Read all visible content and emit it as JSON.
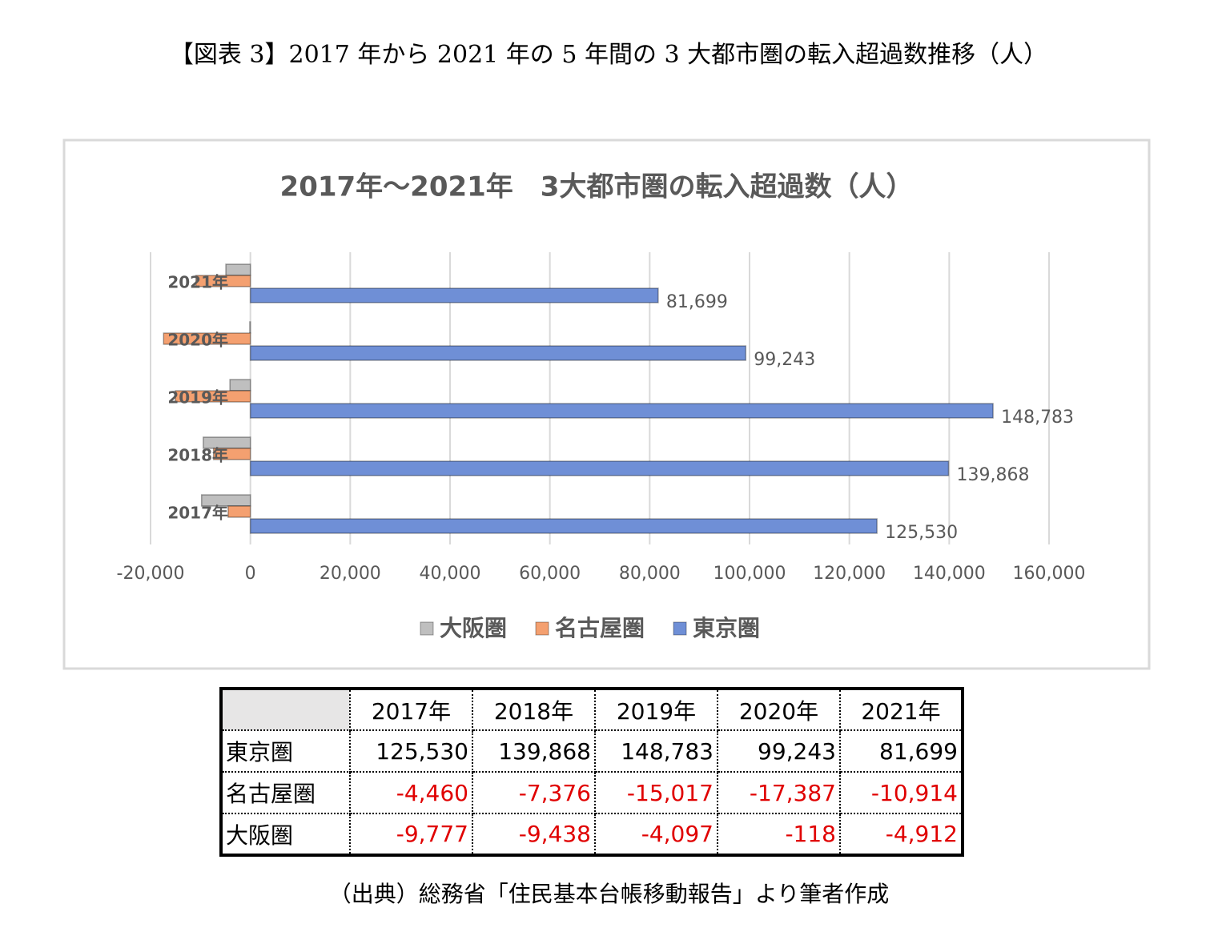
{
  "figure_title": "【図表 3】2017 年から 2021 年の 5 年間の 3 大都市圏の転入超過数推移（人）",
  "chart_data": {
    "type": "bar",
    "orientation": "horizontal",
    "title": "2017年～2021年　3大都市圏の転入超過数（人）",
    "categories": [
      "2017年",
      "2018年",
      "2019年",
      "2020年",
      "2021年"
    ],
    "series": [
      {
        "name": "大阪圏",
        "color": "#bfbfbf",
        "values": [
          -9777,
          -9438,
          -4097,
          -118,
          -4912
        ]
      },
      {
        "name": "名古屋圏",
        "color": "#f4a070",
        "values": [
          -4460,
          -7376,
          -15017,
          -17387,
          -10914
        ]
      },
      {
        "name": "東京圏",
        "color": "#6f8fd6",
        "values": [
          125530,
          139868,
          148783,
          99243,
          81699
        ],
        "value_labels": [
          "125,530",
          "139,868",
          "148,783",
          "99,243",
          "81,699"
        ]
      }
    ],
    "xlim": [
      -20000,
      160000
    ],
    "xticks": [
      {
        "value": -20000,
        "label": "-20,000"
      },
      0,
      {
        "value": 20000,
        "label": "20,000"
      },
      {
        "value": 40000,
        "label": "40,000"
      },
      {
        "value": 60000,
        "label": "60,000"
      },
      {
        "value": 80000,
        "label": "80,000"
      },
      {
        "value": 100000,
        "label": "100,000"
      },
      {
        "value": 120000,
        "label": "120,000"
      },
      {
        "value": 140000,
        "label": "140,000"
      },
      {
        "value": 160000,
        "label": "160,000"
      }
    ],
    "grid": true,
    "legend": "bottom"
  },
  "table": {
    "columns": [
      "2017年",
      "2018年",
      "2019年",
      "2020年",
      "2021年"
    ],
    "negative_color": "#e00000",
    "rows": [
      {
        "label": "東京圏",
        "cells": [
          "125,530",
          "139,868",
          "148,783",
          "99,243",
          "81,699"
        ]
      },
      {
        "label": "名古屋圏",
        "cells": [
          "-4,460",
          "-7,376",
          "-15,017",
          "-17,387",
          "-10,914"
        ]
      },
      {
        "label": "大阪圏",
        "cells": [
          "-9,777",
          "-9,438",
          "-4,097",
          "-118",
          "-4,912"
        ]
      }
    ]
  },
  "source": "（出典）総務省「住民基本台帳移動報告」より筆者作成"
}
